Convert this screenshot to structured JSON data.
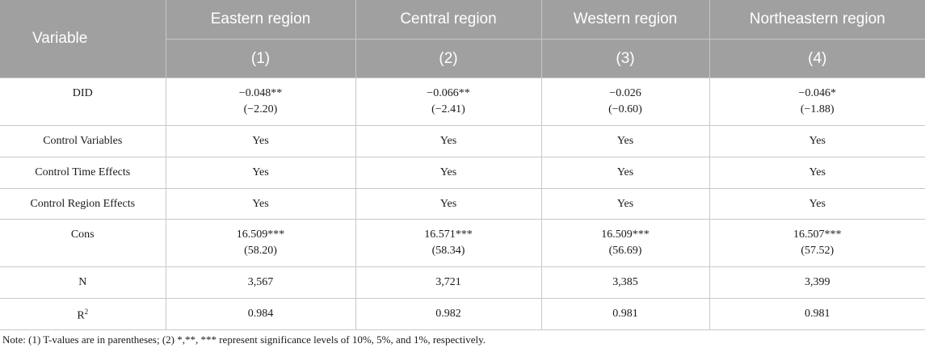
{
  "table": {
    "header_row1": [
      "Variable",
      "Eastern region",
      "Central region",
      "Western region",
      "Northeastern region"
    ],
    "header_row2": [
      "",
      "(1)",
      "(2)",
      "(3)",
      "(4)"
    ],
    "rows": [
      {
        "label": "DID",
        "cells": [
          {
            "coef": "−0.048**",
            "t": "(−2.20)"
          },
          {
            "coef": "−0.066**",
            "t": "(−2.41)"
          },
          {
            "coef": "−0.026",
            "t": "(−0.60)"
          },
          {
            "coef": "−0.046*",
            "t": "(−1.88)"
          }
        ]
      },
      {
        "label": "Control Variables",
        "cells": [
          "Yes",
          "Yes",
          "Yes",
          "Yes"
        ]
      },
      {
        "label": "Control Time Effects",
        "cells": [
          "Yes",
          "Yes",
          "Yes",
          "Yes"
        ]
      },
      {
        "label": "Control Region Effects",
        "cells": [
          "Yes",
          "Yes",
          "Yes",
          "Yes"
        ]
      },
      {
        "label": "Cons",
        "cells": [
          {
            "coef": "16.509***",
            "t": "(58.20)"
          },
          {
            "coef": "16.571***",
            "t": "(58.34)"
          },
          {
            "coef": "16.509***",
            "t": "(56.69)"
          },
          {
            "coef": "16.507***",
            "t": "(57.52)"
          }
        ]
      },
      {
        "label": "N",
        "cells": [
          "3,567",
          "3,721",
          "3,385",
          "3,399"
        ]
      },
      {
        "label_base": "R",
        "label_sup": "2",
        "cells": [
          "0.984",
          "0.982",
          "0.981",
          "0.981"
        ]
      }
    ]
  },
  "note": "Note: (1) T-values are in parentheses; (2) *,**, *** represent significance levels of 10%, 5%, and 1%, respectively.",
  "colors": {
    "header_bg": "#a0a0a0",
    "header_text": "#ffffff",
    "grid": "#c8c8c8"
  }
}
